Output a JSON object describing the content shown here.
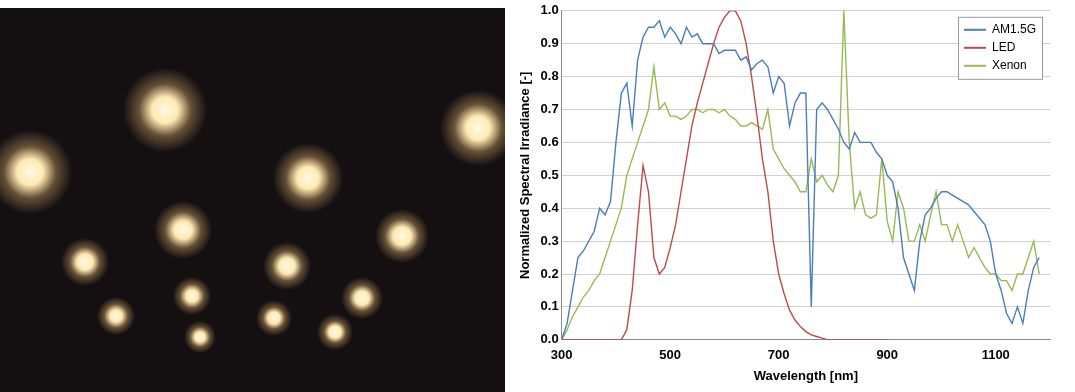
{
  "chart_data": {
    "type": "line",
    "x_label": "Wavelength [nm]",
    "y_label": "Normalized Spectral Irradiance [-]",
    "x": [
      300,
      310,
      320,
      330,
      340,
      350,
      360,
      370,
      380,
      390,
      400,
      410,
      420,
      430,
      440,
      450,
      460,
      470,
      480,
      490,
      500,
      510,
      520,
      530,
      540,
      550,
      560,
      570,
      580,
      590,
      600,
      610,
      620,
      630,
      640,
      650,
      660,
      670,
      680,
      690,
      700,
      710,
      720,
      730,
      740,
      750,
      760,
      770,
      780,
      790,
      800,
      810,
      820,
      830,
      840,
      850,
      860,
      870,
      880,
      890,
      900,
      910,
      920,
      930,
      940,
      950,
      960,
      970,
      980,
      990,
      1000,
      1010,
      1020,
      1030,
      1040,
      1050,
      1060,
      1070,
      1080,
      1090,
      1100,
      1110,
      1120,
      1130,
      1140,
      1150,
      1160,
      1170,
      1180
    ],
    "series": [
      {
        "name": "AM1.5G",
        "color": "#4a7ebb",
        "values": [
          0.0,
          0.05,
          0.15,
          0.25,
          0.27,
          0.3,
          0.33,
          0.4,
          0.38,
          0.42,
          0.6,
          0.75,
          0.78,
          0.65,
          0.85,
          0.92,
          0.95,
          0.95,
          0.97,
          0.92,
          0.95,
          0.93,
          0.9,
          0.95,
          0.92,
          0.93,
          0.9,
          0.9,
          0.9,
          0.87,
          0.88,
          0.88,
          0.88,
          0.85,
          0.86,
          0.82,
          0.84,
          0.85,
          0.83,
          0.75,
          0.8,
          0.78,
          0.65,
          0.72,
          0.75,
          0.75,
          0.1,
          0.7,
          0.72,
          0.7,
          0.67,
          0.64,
          0.6,
          0.58,
          0.63,
          0.6,
          0.6,
          0.6,
          0.57,
          0.55,
          0.5,
          0.48,
          0.4,
          0.25,
          0.2,
          0.15,
          0.3,
          0.38,
          0.4,
          0.43,
          0.45,
          0.45,
          0.44,
          0.43,
          0.42,
          0.41,
          0.39,
          0.37,
          0.35,
          0.3,
          0.2,
          0.15,
          0.08,
          0.05,
          0.1,
          0.05,
          0.15,
          0.22,
          0.25
        ]
      },
      {
        "name": "LED",
        "color": "#be4b48",
        "values": [
          0,
          0,
          0,
          0,
          0,
          0,
          0,
          0,
          0,
          0,
          0,
          0,
          0.03,
          0.15,
          0.35,
          0.53,
          0.45,
          0.25,
          0.2,
          0.22,
          0.28,
          0.35,
          0.45,
          0.55,
          0.65,
          0.72,
          0.78,
          0.84,
          0.9,
          0.95,
          0.98,
          1.0,
          1.0,
          0.97,
          0.9,
          0.8,
          0.68,
          0.55,
          0.45,
          0.3,
          0.2,
          0.14,
          0.09,
          0.06,
          0.04,
          0.025,
          0.015,
          0.01,
          0.005,
          0,
          0,
          0,
          0,
          0,
          0,
          0,
          0,
          0,
          0,
          0,
          0,
          null,
          null,
          null,
          null,
          null,
          null,
          null,
          null,
          null,
          null,
          null,
          null,
          null,
          null,
          null,
          null,
          null,
          null,
          null,
          null,
          null,
          null,
          null,
          null,
          null,
          null,
          null,
          null
        ]
      },
      {
        "name": "Xenon",
        "color": "#98b954",
        "values": [
          0.0,
          0.03,
          0.07,
          0.1,
          0.13,
          0.15,
          0.18,
          0.2,
          0.25,
          0.3,
          0.35,
          0.4,
          0.5,
          0.55,
          0.6,
          0.65,
          0.7,
          0.83,
          0.7,
          0.72,
          0.68,
          0.68,
          0.67,
          0.68,
          0.7,
          0.7,
          0.69,
          0.7,
          0.7,
          0.69,
          0.7,
          0.68,
          0.67,
          0.65,
          0.65,
          0.66,
          0.65,
          0.64,
          0.7,
          0.58,
          0.55,
          0.52,
          0.5,
          0.48,
          0.45,
          0.45,
          0.55,
          0.48,
          0.5,
          0.47,
          0.45,
          0.5,
          1.0,
          0.6,
          0.4,
          0.45,
          0.38,
          0.37,
          0.38,
          0.55,
          0.36,
          0.3,
          0.45,
          0.4,
          0.3,
          0.3,
          0.35,
          0.3,
          0.38,
          0.45,
          0.35,
          0.35,
          0.3,
          0.35,
          0.3,
          0.25,
          0.28,
          0.25,
          0.22,
          0.2,
          0.2,
          0.18,
          0.18,
          0.15,
          0.2,
          0.2,
          0.25,
          0.3,
          0.2
        ]
      }
    ],
    "xlim": [
      300,
      1200
    ],
    "xticks": [
      300,
      500,
      700,
      900,
      1100
    ],
    "ylim": [
      0,
      1
    ],
    "yticks": [
      {
        "value": 0,
        "label": "0.0"
      },
      0.1,
      0.2,
      0.3,
      0.4,
      0.5,
      0.6,
      0.7,
      0.8,
      0.9,
      {
        "value": 1,
        "label": "1.0"
      }
    ],
    "grid": true,
    "legend": "upper right"
  }
}
